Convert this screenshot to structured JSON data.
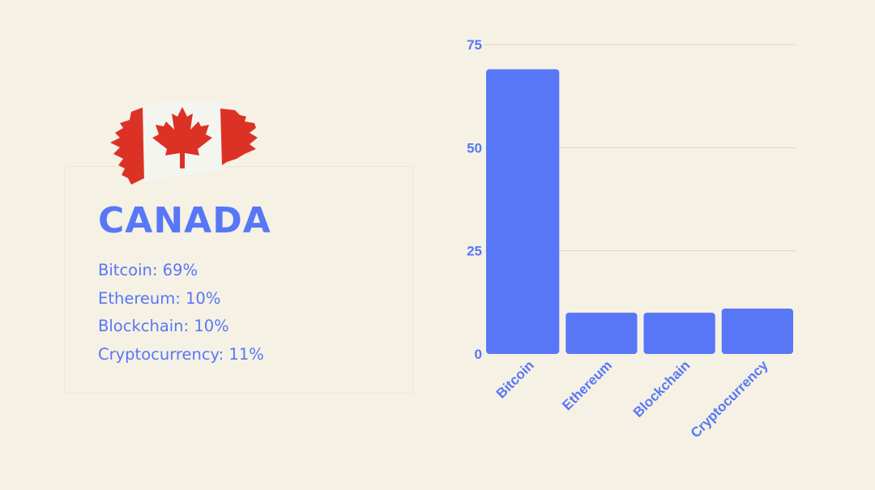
{
  "colors": {
    "background": "#f5f1e4",
    "accent": "#5777f7",
    "flag_red": "#dc3225",
    "flag_white": "#f5f5f0",
    "grid": "#d9d5c8"
  },
  "panel": {
    "title": "CANADA",
    "flag_icon": "canada-flag-icon",
    "stats": [
      "Bitcoin: 69%",
      "Ethereum: 10%",
      "Blockchain: 10%",
      "Cryptocurrency: 11%"
    ]
  },
  "chart_data": {
    "type": "bar",
    "title": "",
    "xlabel": "",
    "ylabel": "",
    "categories": [
      "Bitcoin",
      "Ethereum",
      "Blockchain",
      "Cryptocurrency"
    ],
    "values": [
      69,
      10,
      10,
      11
    ],
    "ylim": [
      0,
      75
    ],
    "yticks": [
      0,
      25,
      50,
      75
    ],
    "grid": true,
    "legend": "none"
  }
}
